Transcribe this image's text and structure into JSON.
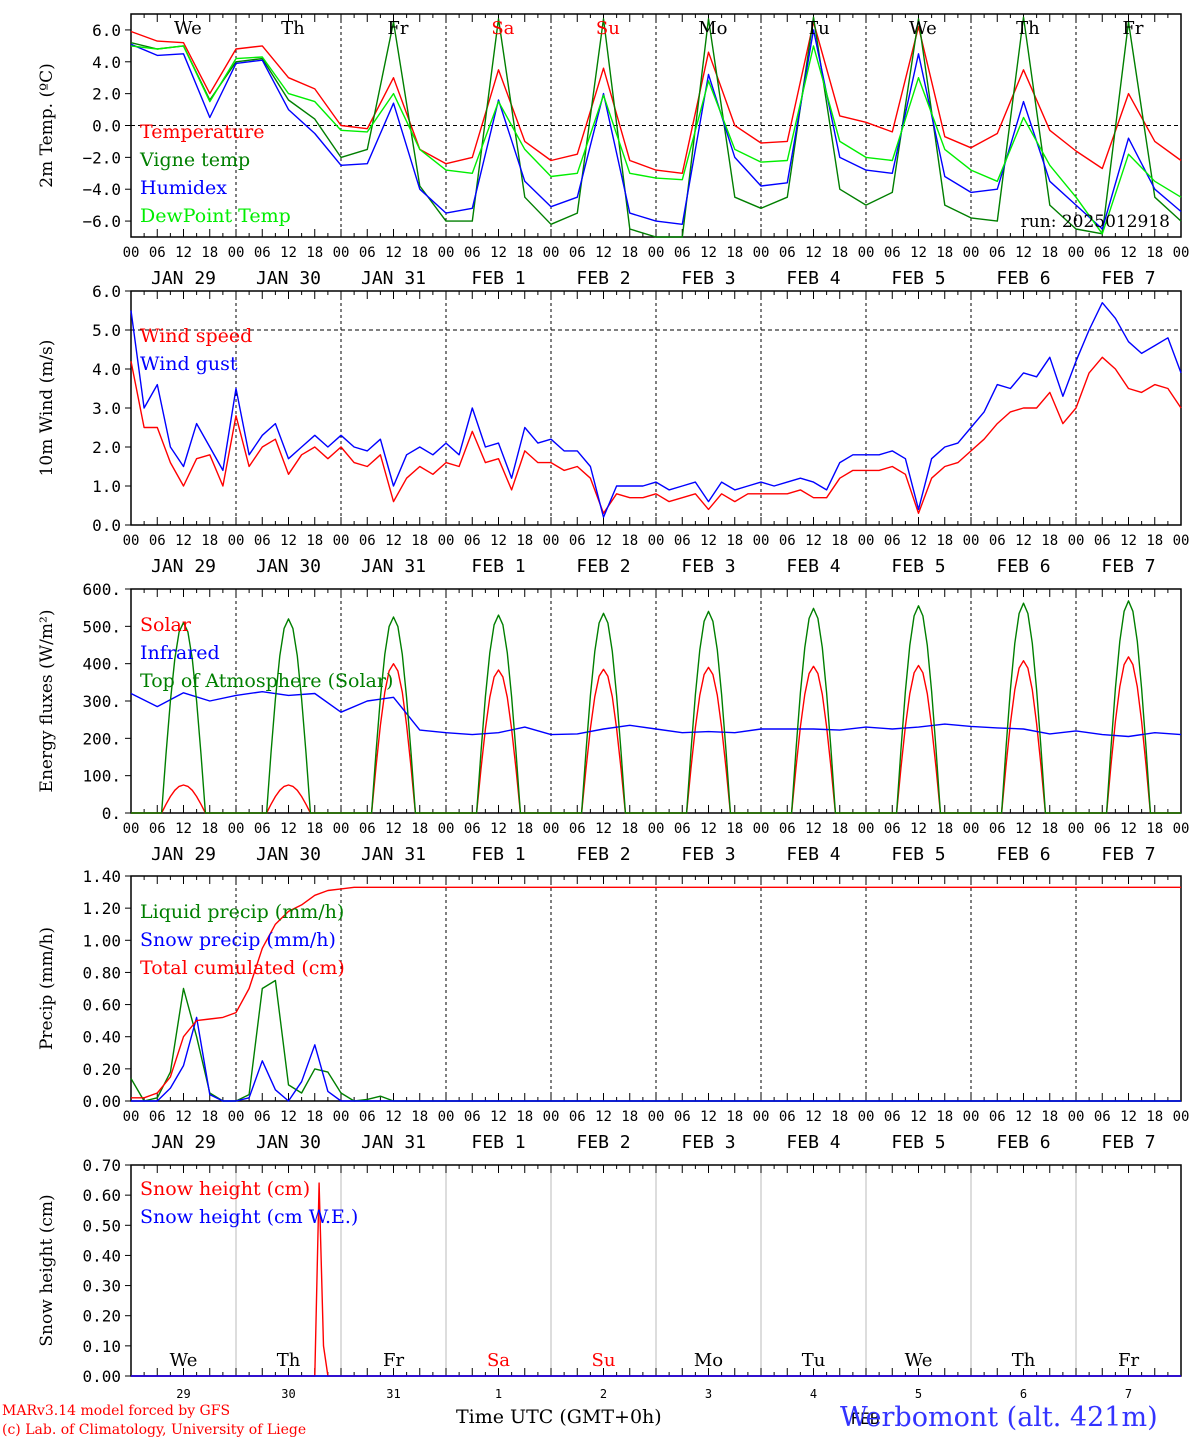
{
  "meta": {
    "run": "run: 2025012918",
    "model_line": "MARv3.14 model forced by GFS",
    "credit_line": "(c) Lab. of Climatology, University of Liege",
    "x_title": "Time UTC (GMT+0h)",
    "station": "Werbomont (alt. 421m)",
    "feb_label": "FEB"
  },
  "colors": {
    "red": "#ff0000",
    "green": "#007f00",
    "blue": "#0000ff",
    "lime": "#00ee00",
    "black": "#000000",
    "weekend": "#ff0000"
  },
  "axis": {
    "hour_ticks": [
      "00",
      "06",
      "12",
      "18"
    ],
    "days": [
      "JAN 29",
      "JAN 30",
      "JAN 31",
      "FEB  1",
      "FEB  2",
      "FEB  3",
      "FEB  4",
      "FEB  5",
      "FEB  6",
      "FEB  7"
    ],
    "weekdays": [
      "We",
      "Th",
      "Fr",
      "Sa",
      "Su",
      "Mo",
      "Tu",
      "We",
      "Th",
      "Fr"
    ],
    "weekend_index": [
      3,
      4
    ],
    "day_numbers": [
      "29",
      "30",
      "31",
      "1",
      "2",
      "3",
      "4",
      "5",
      "6",
      "7"
    ]
  },
  "chart_data": [
    {
      "type": "line",
      "ylabel": "2m Temp. (ºC)",
      "ylim": [
        -7,
        7
      ],
      "yticks": [
        "6.0",
        "4.0",
        "2.0",
        "0.0",
        "−2.0",
        "−4.0",
        "−6.0"
      ],
      "ytick_values": [
        6,
        4,
        2,
        0,
        -2,
        -4,
        -6
      ],
      "x_hours": [
        0,
        6,
        12,
        18,
        24,
        30,
        36,
        42,
        48,
        54,
        60,
        66,
        72,
        78,
        84,
        90,
        96,
        102,
        108,
        114,
        120,
        126,
        132,
        138,
        144,
        150,
        156,
        162,
        168,
        174,
        180,
        186,
        192,
        198,
        204,
        210,
        216,
        222,
        228,
        234,
        240
      ],
      "series": [
        {
          "name": "Temperature",
          "color": "red",
          "values": [
            5.9,
            5.3,
            5.2,
            2.0,
            4.8,
            5.0,
            3.0,
            2.3,
            0.0,
            -0.2,
            3.0,
            -1.5,
            -2.4,
            -2.0,
            3.5,
            -1.0,
            -2.2,
            -1.8,
            3.6,
            -2.2,
            -2.8,
            -3.0,
            4.6,
            0.0,
            -1.1,
            -1.0,
            6.5,
            0.6,
            0.2,
            -0.4,
            6.2,
            -0.7,
            -1.4,
            -0.5,
            3.5,
            -0.3,
            -1.6,
            -2.7,
            2.0,
            -1.0,
            -2.2
          ]
        },
        {
          "name": "Vigne temp",
          "color": "green",
          "values": [
            5.2,
            4.8,
            5.0,
            1.6,
            4.0,
            4.2,
            1.6,
            0.4,
            -2.0,
            -1.5,
            6.5,
            -3.8,
            -6.0,
            -6.0,
            6.7,
            -4.5,
            -6.2,
            -5.5,
            6.7,
            -6.5,
            -7.0,
            -7.0,
            6.7,
            -4.5,
            -5.2,
            -4.5,
            6.8,
            -4.0,
            -5.0,
            -4.2,
            6.7,
            -5.0,
            -5.8,
            -6.0,
            6.8,
            -5.0,
            -6.5,
            -6.8,
            6.5,
            -4.5,
            -6.0
          ]
        },
        {
          "name": "Humidex",
          "color": "blue",
          "values": [
            5.1,
            4.4,
            4.5,
            0.5,
            3.9,
            4.1,
            1.0,
            -0.5,
            -2.5,
            -2.4,
            1.4,
            -4.0,
            -5.5,
            -5.2,
            1.6,
            -3.5,
            -5.1,
            -4.5,
            2.0,
            -5.5,
            -6.0,
            -6.2,
            3.2,
            -2.0,
            -3.8,
            -3.6,
            6.0,
            -2.0,
            -2.8,
            -3.0,
            4.5,
            -3.2,
            -4.2,
            -4.0,
            1.5,
            -3.5,
            -5.0,
            -6.5,
            -0.8,
            -4.0,
            -5.4
          ]
        },
        {
          "name": "DewPoint Temp",
          "color": "lime",
          "values": [
            5.0,
            4.8,
            5.0,
            1.5,
            4.2,
            4.3,
            2.0,
            1.5,
            -0.3,
            -0.4,
            2.0,
            -1.5,
            -2.8,
            -3.0,
            1.5,
            -1.5,
            -3.2,
            -3.0,
            1.9,
            -3.0,
            -3.3,
            -3.4,
            2.8,
            -1.5,
            -2.3,
            -2.2,
            5.0,
            -1.0,
            -2.0,
            -2.2,
            3.0,
            -1.5,
            -2.8,
            -3.5,
            0.5,
            -2.5,
            -4.5,
            -6.8,
            -1.8,
            -3.5,
            -4.5
          ]
        }
      ]
    },
    {
      "type": "line",
      "ylabel": "10m Wind (m/s)",
      "ylim": [
        0,
        6
      ],
      "yticks": [
        "6.0",
        "5.0",
        "4.0",
        "3.0",
        "2.0",
        "1.0",
        "0.0"
      ],
      "ytick_values": [
        6,
        5,
        4,
        3,
        2,
        1,
        0
      ],
      "x_hours": [
        0,
        3,
        6,
        9,
        12,
        15,
        18,
        21,
        24,
        27,
        30,
        33,
        36,
        39,
        42,
        45,
        48,
        51,
        54,
        57,
        60,
        63,
        66,
        69,
        72,
        75,
        78,
        81,
        84,
        87,
        90,
        93,
        96,
        99,
        102,
        105,
        108,
        111,
        114,
        117,
        120,
        123,
        126,
        129,
        132,
        135,
        138,
        141,
        144,
        147,
        150,
        153,
        156,
        159,
        162,
        165,
        168,
        171,
        174,
        177,
        180,
        183,
        186,
        189,
        192,
        195,
        198,
        201,
        204,
        207,
        210,
        213,
        216,
        219,
        222,
        225,
        228,
        231,
        234,
        237,
        240
      ],
      "series": [
        {
          "name": "Wind speed",
          "color": "red",
          "values": [
            4.2,
            2.5,
            2.5,
            1.6,
            1.0,
            1.7,
            1.8,
            1.0,
            2.8,
            1.5,
            2.0,
            2.2,
            1.3,
            1.8,
            2.0,
            1.7,
            2.0,
            1.6,
            1.5,
            1.8,
            0.6,
            1.2,
            1.5,
            1.3,
            1.6,
            1.5,
            2.4,
            1.6,
            1.7,
            0.9,
            1.9,
            1.6,
            1.6,
            1.4,
            1.5,
            1.2,
            0.3,
            0.8,
            0.7,
            0.7,
            0.8,
            0.6,
            0.7,
            0.8,
            0.4,
            0.8,
            0.6,
            0.8,
            0.8,
            0.8,
            0.8,
            0.9,
            0.7,
            0.7,
            1.2,
            1.4,
            1.4,
            1.4,
            1.5,
            1.3,
            0.3,
            1.2,
            1.5,
            1.6,
            1.9,
            2.2,
            2.6,
            2.9,
            3.0,
            3.0,
            3.4,
            2.6,
            3.0,
            3.9,
            4.3,
            4.0,
            3.5,
            3.4,
            3.6,
            3.5,
            3.0
          ]
        },
        {
          "name": "Wind gust",
          "color": "blue",
          "values": [
            5.5,
            3.0,
            3.6,
            2.0,
            1.5,
            2.6,
            2.0,
            1.4,
            3.5,
            1.8,
            2.3,
            2.6,
            1.7,
            2.0,
            2.3,
            2.0,
            2.3,
            2.0,
            1.9,
            2.2,
            1.0,
            1.8,
            2.0,
            1.8,
            2.1,
            1.8,
            3.0,
            2.0,
            2.1,
            1.2,
            2.5,
            2.1,
            2.2,
            1.9,
            1.9,
            1.5,
            0.2,
            1.0,
            1.0,
            1.0,
            1.1,
            0.9,
            1.0,
            1.1,
            0.6,
            1.1,
            0.9,
            1.0,
            1.1,
            1.0,
            1.1,
            1.2,
            1.1,
            0.9,
            1.6,
            1.8,
            1.8,
            1.8,
            1.9,
            1.7,
            0.4,
            1.7,
            2.0,
            2.1,
            2.5,
            2.9,
            3.6,
            3.5,
            3.9,
            3.8,
            4.3,
            3.3,
            4.2,
            5.0,
            5.7,
            5.3,
            4.7,
            4.4,
            4.6,
            4.8,
            3.9
          ]
        }
      ]
    },
    {
      "type": "line",
      "ylabel": "Energy fluxes (W/m²)",
      "ylim": [
        0,
        600
      ],
      "yticks": [
        "600.",
        "500.",
        "400.",
        "300.",
        "200.",
        "100.",
        "0."
      ],
      "ytick_values": [
        600,
        500,
        400,
        300,
        200,
        100,
        0
      ],
      "x_hours": [
        0,
        6,
        12,
        18,
        24,
        30,
        36,
        42,
        48,
        54,
        60,
        66,
        72,
        78,
        84,
        90,
        96,
        102,
        108,
        114,
        120,
        126,
        132,
        138,
        144,
        150,
        156,
        162,
        168,
        174,
        180,
        186,
        192,
        198,
        204,
        210,
        216,
        222,
        228,
        234,
        240
      ],
      "diurnal_hours": {
        "rise": 7.0,
        "set": 17.0
      },
      "series": [
        {
          "name": "Solar",
          "color": "red",
          "daily_peak": [
            75,
            75,
            400,
            383,
            385,
            390,
            393,
            395,
            408,
            418
          ]
        },
        {
          "name": "Infrared",
          "color": "blue",
          "values": [
            320,
            285,
            322,
            300,
            315,
            325,
            315,
            320,
            270,
            300,
            310,
            222,
            215,
            210,
            215,
            230,
            210,
            212,
            225,
            235,
            225,
            215,
            218,
            215,
            225,
            225,
            225,
            222,
            230,
            225,
            230,
            238,
            232,
            228,
            225,
            212,
            220,
            210,
            205,
            215,
            210
          ]
        },
        {
          "name": "Top of Atmosphere (Solar)",
          "color": "green",
          "daily_peak": [
            510,
            520,
            525,
            530,
            535,
            540,
            548,
            555,
            562,
            568
          ]
        }
      ]
    },
    {
      "type": "line",
      "ylabel": "Precip (mm/h)",
      "ylim": [
        0,
        1.4
      ],
      "yticks": [
        "1.40",
        "1.20",
        "1.00",
        "0.80",
        "0.60",
        "0.40",
        "0.20",
        "0.00"
      ],
      "ytick_values": [
        1.4,
        1.2,
        1.0,
        0.8,
        0.6,
        0.4,
        0.2,
        0.0
      ],
      "x_hours": [
        0,
        3,
        6,
        9,
        12,
        15,
        18,
        21,
        24,
        27,
        30,
        33,
        36,
        39,
        42,
        45,
        48,
        51,
        54,
        57,
        60,
        66,
        72,
        240
      ],
      "series": [
        {
          "name": "Liquid precip (mm/h)",
          "color": "green",
          "values": [
            0.14,
            0.0,
            0.02,
            0.18,
            0.7,
            0.4,
            0.05,
            0.0,
            0.0,
            0.04,
            0.7,
            0.75,
            0.1,
            0.05,
            0.2,
            0.18,
            0.05,
            0.0,
            0.01,
            0.03,
            0.0,
            0.0,
            0.0,
            0.0
          ]
        },
        {
          "name": "Snow precip (mm/h)",
          "color": "blue",
          "values": [
            0.0,
            0.0,
            0.0,
            0.08,
            0.22,
            0.52,
            0.04,
            0.0,
            0.0,
            0.02,
            0.25,
            0.07,
            0.0,
            0.12,
            0.35,
            0.06,
            0.0,
            0.0,
            0.0,
            0.0,
            0.0,
            0.0,
            0.0,
            0.0
          ]
        },
        {
          "name": "Total cumulated (cm)",
          "color": "red",
          "values": [
            0.02,
            0.02,
            0.05,
            0.15,
            0.4,
            0.5,
            0.51,
            0.52,
            0.55,
            0.7,
            0.95,
            1.1,
            1.18,
            1.22,
            1.28,
            1.31,
            1.32,
            1.33,
            1.33,
            1.33,
            1.33,
            1.33,
            1.33,
            1.33
          ]
        }
      ]
    },
    {
      "type": "line",
      "ylabel": "Snow height (cm)",
      "ylim": [
        0,
        0.7
      ],
      "yticks": [
        "0.70",
        "0.60",
        "0.50",
        "0.40",
        "0.30",
        "0.20",
        "0.10",
        "0.00"
      ],
      "ytick_values": [
        0.7,
        0.6,
        0.5,
        0.4,
        0.3,
        0.2,
        0.1,
        0.0
      ],
      "x_hours": [
        0,
        42,
        43,
        44,
        45,
        240
      ],
      "series": [
        {
          "name": "Snow height (cm)",
          "color": "red",
          "values": [
            0,
            0,
            0.64,
            0.1,
            0,
            0
          ]
        },
        {
          "name": "Snow height (cm W.E.)",
          "color": "blue",
          "values": [
            0,
            0,
            0,
            0,
            0,
            0
          ]
        }
      ]
    }
  ]
}
